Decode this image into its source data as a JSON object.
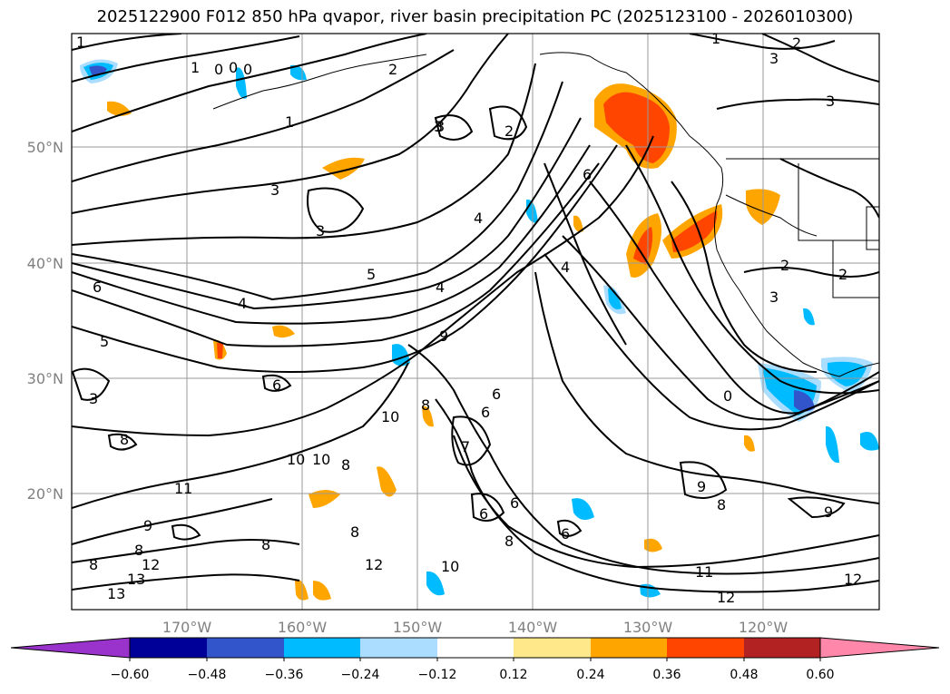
{
  "title": "2025122900 F012 850 hPa qvapor, river basin precipitation PC (2025123100 - 2026010300)",
  "lat_labels": [
    "50°N",
    "40°N",
    "30°N",
    "20°N"
  ],
  "lon_labels": [
    "170°W",
    "160°W",
    "150°W",
    "140°W",
    "130°W",
    "120°W"
  ],
  "contour_labels": [
    "1",
    "1",
    "0",
    "0",
    "0",
    "1",
    "2",
    "3",
    "3",
    "3",
    "2",
    "1",
    "2",
    "3",
    "3",
    "4",
    "5",
    "4",
    "6",
    "5",
    "6",
    "3",
    "3",
    "4",
    "4",
    "9",
    "6",
    "6",
    "8",
    "10",
    "10",
    "10",
    "8",
    "8",
    "8",
    "11",
    "9",
    "8",
    "8",
    "8",
    "13",
    "13",
    "12",
    "12",
    "10",
    "11",
    "12",
    "12",
    "9",
    "8",
    "9",
    "6",
    "7",
    "6",
    "6",
    "6",
    "8",
    "0",
    "3",
    "2",
    "2"
  ],
  "colorbar": {
    "ticks": [
      "−0.60",
      "−0.48",
      "−0.36",
      "−0.24",
      "−0.12",
      "0.12",
      "0.24",
      "0.36",
      "0.48",
      "0.60"
    ],
    "colors": [
      "#9933cc",
      "#000099",
      "#3355cc",
      "#00bbff",
      "#aaddff",
      "#ffffff",
      "#ffe88a",
      "#ffa500",
      "#ff4500",
      "#b22222",
      "#ff88aa"
    ]
  }
}
